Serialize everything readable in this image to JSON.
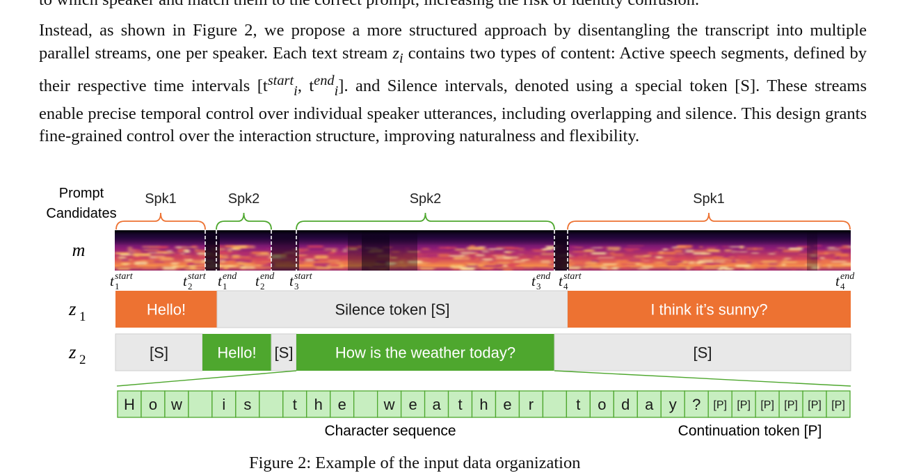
{
  "text": {
    "top_line": "to which speaker and match them to the correct prompt, increasing the risk of identity confusion.",
    "paragraph": {
      "s1": "Instead, as shown in Figure 2, we propose a more structured approach by disentangling the transcript into multiple parallel streams, one per speaker. Each text stream ",
      "var_z": "z",
      "var_z_sub": "i",
      "s2": " contains two types of content: Active speech segments, defined by their respective time intervals ",
      "interval": "[t",
      "interval_sup1": "start",
      "interval_sub1": "i",
      "interval_mid": ", t",
      "interval_sup2": "end",
      "interval_sub2": "i",
      "interval_close": "]",
      "s3": ". and Silence intervals, denoted using a special token ",
      "token_s": "[S]",
      "s4": ". These streams enable precise temporal control over individual speaker utterances, including overlapping and silence. This design grants fine-grained control over the interaction structure, improving naturalness and flexibility."
    },
    "caption": "Figure 2: Example of the input data organization"
  },
  "figure": {
    "prompt_label_line1": "Prompt",
    "prompt_label_line2": "Candidates",
    "row_labels": {
      "m": "m",
      "z1": "z",
      "z1_sub": "1",
      "z2": "z",
      "z2_sub": "2"
    },
    "speakers": [
      {
        "label": "Spk1",
        "color": "#ED7232"
      },
      {
        "label": "Spk2",
        "color": "#4EA72E"
      },
      {
        "label": "Spk2",
        "color": "#4EA72E"
      },
      {
        "label": "Spk1",
        "color": "#ED7232"
      }
    ],
    "time_markers": [
      {
        "sub": "1",
        "sup": "start"
      },
      {
        "sub": "2",
        "sup": "start"
      },
      {
        "sub": "1",
        "sup": "end"
      },
      {
        "sub": "2",
        "sup": "end"
      },
      {
        "sub": "3",
        "sup": "start"
      },
      {
        "sub": "3",
        "sup": "end"
      },
      {
        "sub": "4",
        "sup": "start"
      },
      {
        "sub": "4",
        "sup": "end"
      }
    ],
    "z1_segments": [
      {
        "text": "Hello!",
        "kind": "speech",
        "color": "#ED7232"
      },
      {
        "text": "Silence token [S]",
        "kind": "silence",
        "color": "#E8E8E8"
      },
      {
        "text": "I think it’s sunny?",
        "kind": "speech",
        "color": "#ED7232"
      }
    ],
    "z2_segments": [
      {
        "text": "[S]",
        "kind": "silence",
        "color": "#E8E8E8"
      },
      {
        "text": "Hello!",
        "kind": "speech",
        "color": "#4EA72E"
      },
      {
        "text": "[S]",
        "kind": "silence",
        "color": "#E8E8E8"
      },
      {
        "text": "How is the weather today?",
        "kind": "speech",
        "color": "#4EA72E"
      },
      {
        "text": "[S]",
        "kind": "silence",
        "color": "#E8E8E8"
      }
    ],
    "character_sequence": [
      "H",
      "o",
      "w",
      "",
      "i",
      "s",
      "",
      "t",
      "h",
      "e",
      "",
      "w",
      "e",
      "a",
      "t",
      "h",
      "e",
      "r",
      "",
      "t",
      "o",
      "d",
      "a",
      "y",
      "?",
      "[P]",
      "[P]",
      "[P]",
      "[P]",
      "[P]",
      "[P]"
    ],
    "char_cell_color": "#C7EEC0",
    "char_cell_border": "#4EA72E",
    "label_char_seq": "Character sequence",
    "label_continuation": "Continuation token [P]"
  }
}
